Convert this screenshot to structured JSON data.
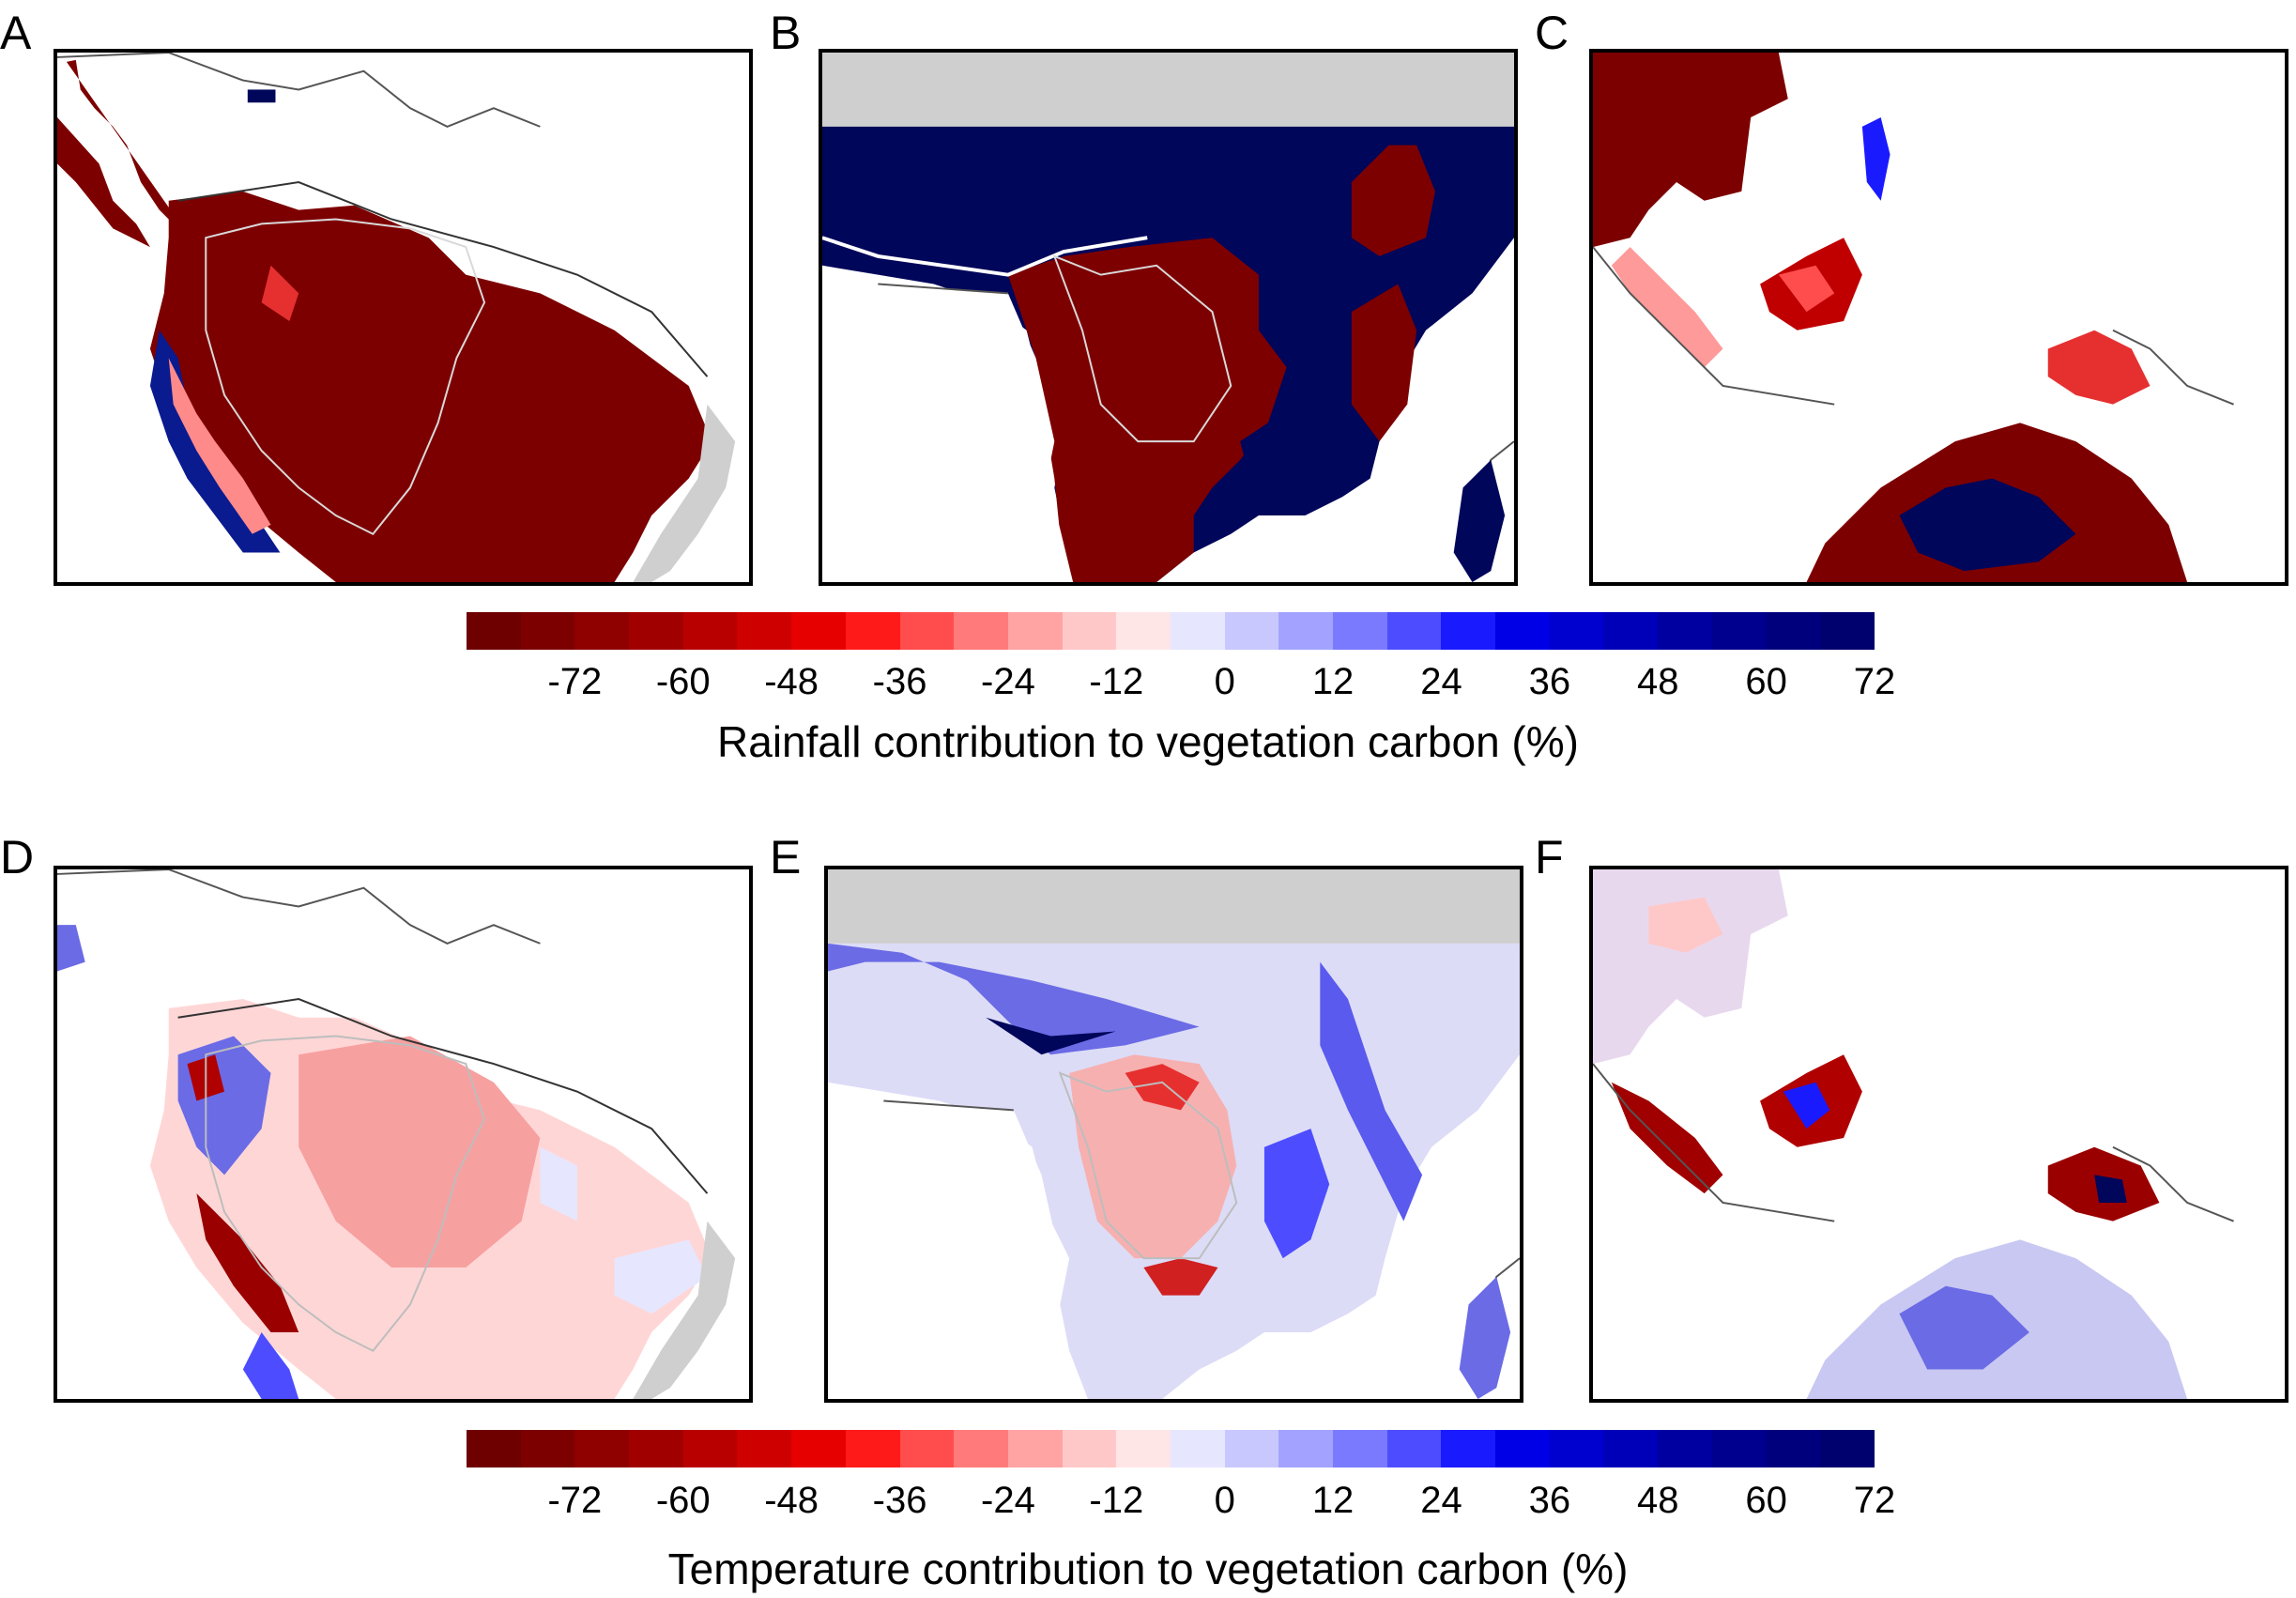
{
  "panels": [
    {
      "letter": "A",
      "region": "south-america",
      "variable": "rainfall"
    },
    {
      "letter": "B",
      "region": "central-africa",
      "variable": "rainfall"
    },
    {
      "letter": "C",
      "region": "southeast-asia",
      "variable": "rainfall"
    },
    {
      "letter": "D",
      "region": "south-america",
      "variable": "temperature"
    },
    {
      "letter": "E",
      "region": "central-africa",
      "variable": "temperature"
    },
    {
      "letter": "F",
      "region": "southeast-asia",
      "variable": "temperature"
    }
  ],
  "colorbar": {
    "ticks": [
      "-72",
      "-60",
      "-48",
      "-36",
      "-24",
      "-12",
      "0",
      "12",
      "24",
      "36",
      "48",
      "60",
      "72"
    ],
    "colors": [
      "#6f0000",
      "#7d0000",
      "#8f0000",
      "#a10000",
      "#b80000",
      "#cf0000",
      "#e60000",
      "#ff1a1a",
      "#ff4d4d",
      "#ff7a7a",
      "#ffa3a3",
      "#ffc8c8",
      "#ffe6e6",
      "#e6e6ff",
      "#c8c8ff",
      "#a3a3ff",
      "#7a7aff",
      "#4d4dff",
      "#1a1aff",
      "#0000e6",
      "#0000cf",
      "#0000b8",
      "#0000a1",
      "#00008f",
      "#00007d",
      "#00006f"
    ]
  },
  "labels": {
    "rainfall": "Rainfall contribution to vegetation carbon (%)",
    "temperature": "Temperature contribution to vegetation carbon (%)"
  },
  "palette": {
    "land_mask": "#cfcfcf",
    "strong_neg": "#7d0000",
    "strong_pos": "#00065a",
    "weak_neg": "#f7b8b8",
    "weak_pos": "#dcdcf7",
    "coast": "#333333"
  }
}
